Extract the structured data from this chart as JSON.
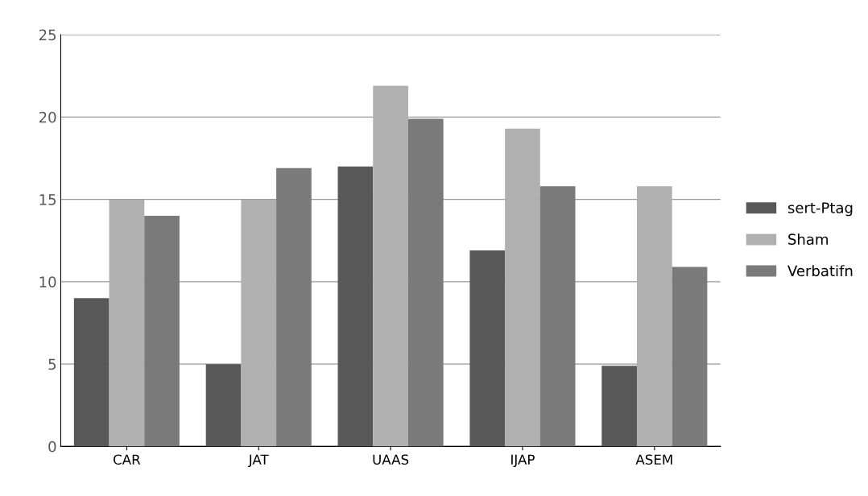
{
  "chart_data": {
    "type": "bar",
    "categories": [
      "CAR",
      "JAT",
      "UAAS",
      "IJAP",
      "ASEM"
    ],
    "series": [
      {
        "name": "sert-Ptag",
        "color": "#585858",
        "values": [
          9,
          5,
          17,
          11.9,
          4.9
        ]
      },
      {
        "name": "Sham",
        "color": "#b0b0b0",
        "values": [
          15,
          15,
          21.9,
          19.3,
          15.8
        ]
      },
      {
        "name": "Verbatifn",
        "color": "#7a7a7a",
        "values": [
          14,
          16.9,
          19.9,
          15.8,
          10.9
        ]
      }
    ],
    "ylim": [
      0,
      25
    ],
    "yticks": [
      0,
      5,
      10,
      15,
      20,
      25
    ],
    "grid": "y",
    "legend": "right"
  }
}
